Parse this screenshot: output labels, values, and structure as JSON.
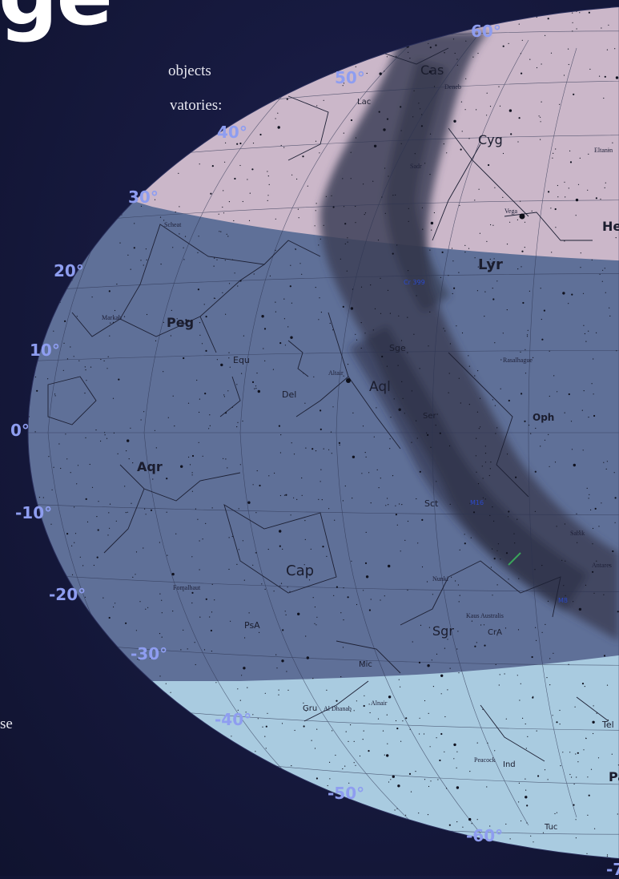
{
  "page": {
    "headline": "ge",
    "text_lines": [
      "objects",
      "vatories:",
      "se"
    ]
  },
  "declination_labels": [
    "60°",
    "50°",
    "40°",
    "30°",
    "20°",
    "10°",
    "0°",
    "-10°",
    "-20°",
    "-30°",
    "-40°",
    "-50°",
    "-60°",
    "-7"
  ],
  "constellations": [
    "Cas",
    "Cyg",
    "Lac",
    "Lyr",
    "He",
    "Peg",
    "Equ",
    "Del",
    "Sge",
    "Aql",
    "Oph",
    "Ser",
    "Aqr",
    "Cap",
    "Sct",
    "PsA",
    "Mic",
    "Sgr",
    "CrA",
    "Gru",
    "Ind",
    "Tuc",
    "Tel",
    "Pa"
  ],
  "star_names": [
    "Scheat",
    "Markab",
    "Altair",
    "Vega",
    "Deneb",
    "Sadr",
    "Rasalhague",
    "Fomalhaut",
    "Alnair",
    "Al Dhanab",
    "Peacock",
    "Nunki",
    "Kaus Australis",
    "Antares",
    "Sabik",
    "Eltanin"
  ],
  "objects": [
    "M16",
    "M8",
    "Cr 399"
  ],
  "colors": {
    "background": "#161a42",
    "north_zone": "#cbb7c9",
    "mid_zone": "#5f7098",
    "south_zone": "#a9cbe0",
    "milky_way": "#3d4057",
    "dec_label": "#8e9df0"
  }
}
